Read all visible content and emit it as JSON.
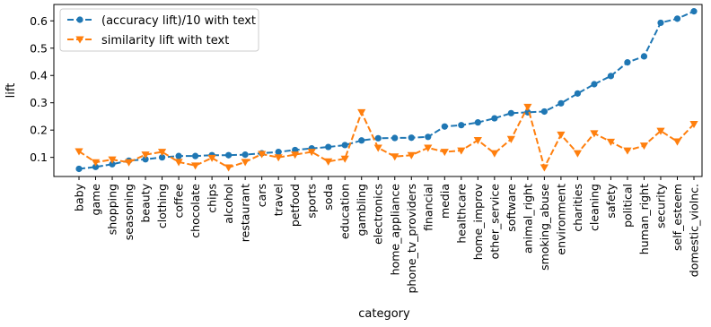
{
  "chart_data": {
    "type": "line",
    "xlabel": "category",
    "ylabel": "lift",
    "ylim": [
      0.03,
      0.66
    ],
    "yticks": [
      0.1,
      0.2,
      0.3,
      0.4,
      0.5,
      0.6
    ],
    "ytick_labels": [
      "0.1",
      "0.2",
      "0.3",
      "0.4",
      "0.5",
      "0.6"
    ],
    "grid": false,
    "legend_position": "top-left",
    "categories": [
      "baby",
      "game",
      "shopping",
      "seasoning",
      "beauty",
      "clothing",
      "coffee",
      "chocolate",
      "chips",
      "alcohol",
      "restaurant",
      "cars",
      "travel",
      "petfood",
      "sports",
      "soda",
      "education",
      "gambling",
      "electronics",
      "home_appliance",
      "phone_tv_providers",
      "financial",
      "media",
      "healthcare",
      "home_improv",
      "other_service",
      "software",
      "animal_right",
      "smoking_abuse",
      "environment",
      "charities",
      "cleaning",
      "safety",
      "political",
      "human_right",
      "security",
      "self_esteem",
      "domestic_violnc."
    ],
    "series": [
      {
        "name": "(accuracy lift)/10 with text",
        "color": "#1f77b4",
        "marker": "circle",
        "line_style": "dashed",
        "values": [
          0.058,
          0.065,
          0.075,
          0.088,
          0.093,
          0.1,
          0.105,
          0.105,
          0.108,
          0.108,
          0.11,
          0.115,
          0.12,
          0.127,
          0.133,
          0.138,
          0.145,
          0.162,
          0.17,
          0.171,
          0.172,
          0.175,
          0.213,
          0.218,
          0.228,
          0.243,
          0.262,
          0.265,
          0.268,
          0.298,
          0.334,
          0.368,
          0.398,
          0.448,
          0.47,
          0.593,
          0.608,
          0.635
        ]
      },
      {
        "name": "similarity lift with text",
        "color": "#ff7f0e",
        "marker": "triangle-down",
        "line_style": "dashed",
        "values": [
          0.122,
          0.082,
          0.092,
          0.082,
          0.11,
          0.12,
          0.083,
          0.07,
          0.098,
          0.063,
          0.083,
          0.112,
          0.1,
          0.11,
          0.12,
          0.085,
          0.095,
          0.265,
          0.135,
          0.103,
          0.108,
          0.135,
          0.12,
          0.125,
          0.163,
          0.115,
          0.167,
          0.285,
          0.063,
          0.183,
          0.115,
          0.188,
          0.157,
          0.125,
          0.143,
          0.197,
          0.158,
          0.222
        ]
      }
    ]
  }
}
